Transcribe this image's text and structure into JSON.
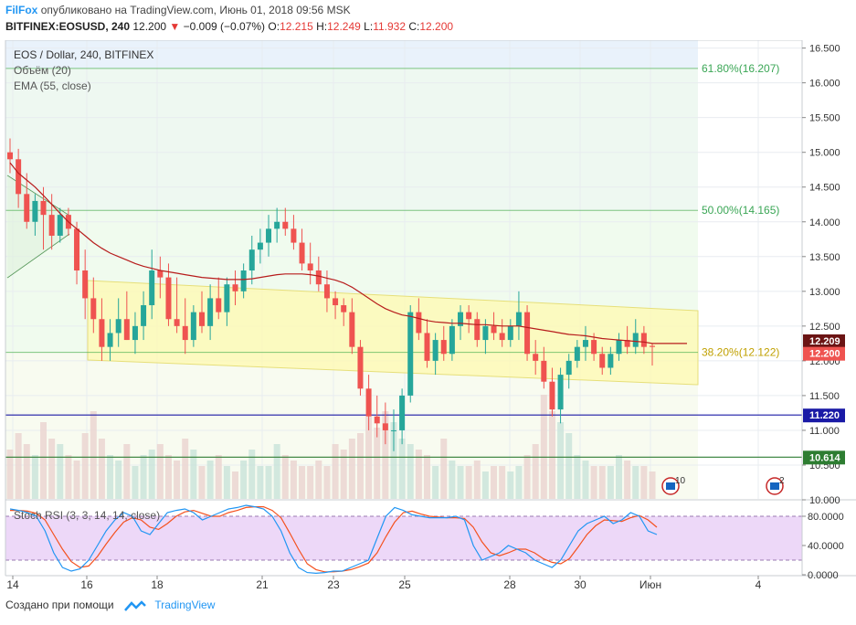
{
  "header": {
    "brand": "FilFox",
    "published": "опубликовано на TradingView.com, Июнь 01, 2018 09:56 MSK",
    "symbol": "BITFINEX:EOSUSD, 240",
    "last": "12.200",
    "change": "−0.009 (−0.07%)",
    "o_label": "O:",
    "o_val": "12.215",
    "h_label": "H:",
    "h_val": "12.249",
    "l_label": "L:",
    "l_val": "11.932",
    "c_label": "C:",
    "c_val": "12.200"
  },
  "legend": {
    "title": "EOS / Dollar, 240, BITFINEX",
    "volume": "Объём (20)",
    "ema": "EMA (55, close)",
    "stoch": "Stoch RSI (3, 3, 14, 14, close)"
  },
  "footer": {
    "created": "Создано при помощи",
    "tv": "TradingView"
  },
  "colors": {
    "up": "#26a69a",
    "down": "#ef5350",
    "ema": "#b71c1c",
    "fib": "#4caf50",
    "blue_line": "#1a1aa6",
    "green_line": "#2e7d32",
    "channel": "#fff9b0",
    "stoch_k": "#2196f3",
    "stoch_d": "#f4511e",
    "stoch_band": "#e6c8f5"
  },
  "chart_data": {
    "type": "candlestick",
    "title": "EOS / Dollar, 240, BITFINEX",
    "y_axis_ticks": [
      "16.500",
      "16.000",
      "15.500",
      "15.000",
      "14.500",
      "14.000",
      "13.500",
      "13.000",
      "12.500",
      "12.000",
      "11.500",
      "11.000",
      "10.500",
      "10.000"
    ],
    "ylim": [
      10.0,
      16.6
    ],
    "x_axis_ticks": [
      "14",
      "16",
      "18",
      "21",
      "23",
      "25",
      "28",
      "30",
      "Июн",
      "4"
    ],
    "price_labels": [
      {
        "value": 12.209,
        "text": "12.209",
        "color": "#6b1414"
      },
      {
        "value": 12.2,
        "text": "12.200",
        "color": "#ef5350"
      },
      {
        "value": 11.22,
        "text": "11.220",
        "color": "#1a1aa6"
      },
      {
        "value": 10.614,
        "text": "10.614",
        "color": "#2e7d32"
      }
    ],
    "horizontal_lines": [
      {
        "value": 11.22,
        "color": "#1a1aa6"
      },
      {
        "value": 10.614,
        "color": "#2e7d32"
      }
    ],
    "fibonacci": [
      {
        "value": 16.207,
        "text": "61.80%(16.207)"
      },
      {
        "value": 14.165,
        "text": "50.00%(14.165)"
      },
      {
        "value": 12.122,
        "text": "38.20%(12.122)"
      }
    ],
    "candles": [
      [
        15.0,
        15.2,
        14.7,
        14.9
      ],
      [
        14.9,
        15.05,
        14.2,
        14.4
      ],
      [
        14.4,
        14.7,
        13.9,
        14.0
      ],
      [
        14.0,
        14.4,
        13.8,
        14.3
      ],
      [
        14.3,
        14.5,
        13.6,
        14.1
      ],
      [
        14.1,
        14.4,
        13.6,
        13.8
      ],
      [
        13.8,
        14.2,
        13.7,
        14.1
      ],
      [
        14.1,
        14.2,
        13.8,
        13.9
      ],
      [
        13.9,
        14.0,
        13.1,
        13.3
      ],
      [
        13.3,
        13.6,
        12.6,
        12.9
      ],
      [
        12.9,
        13.2,
        12.4,
        12.6
      ],
      [
        12.6,
        12.9,
        12.0,
        12.2
      ],
      [
        12.2,
        12.6,
        12.0,
        12.4
      ],
      [
        12.4,
        12.9,
        12.2,
        12.6
      ],
      [
        12.6,
        13.0,
        12.3,
        12.3
      ],
      [
        12.3,
        12.7,
        12.1,
        12.5
      ],
      [
        12.5,
        13.0,
        12.3,
        12.8
      ],
      [
        12.8,
        13.6,
        12.6,
        13.3
      ],
      [
        13.3,
        13.5,
        12.9,
        13.2
      ],
      [
        13.2,
        13.4,
        12.5,
        12.6
      ],
      [
        12.6,
        13.2,
        12.4,
        12.5
      ],
      [
        12.5,
        12.9,
        12.1,
        12.3
      ],
      [
        12.3,
        12.8,
        12.2,
        12.7
      ],
      [
        12.7,
        13.0,
        12.4,
        12.5
      ],
      [
        12.5,
        13.1,
        12.3,
        12.9
      ],
      [
        12.9,
        13.2,
        12.6,
        12.7
      ],
      [
        12.7,
        13.2,
        12.5,
        13.1
      ],
      [
        13.1,
        13.3,
        12.8,
        13.0
      ],
      [
        13.0,
        13.4,
        12.9,
        13.3
      ],
      [
        13.3,
        13.8,
        13.1,
        13.6
      ],
      [
        13.6,
        13.9,
        13.4,
        13.7
      ],
      [
        13.7,
        14.1,
        13.5,
        13.9
      ],
      [
        13.9,
        14.2,
        13.7,
        14.0
      ],
      [
        14.0,
        14.2,
        13.8,
        13.9
      ],
      [
        13.9,
        14.1,
        13.6,
        13.7
      ],
      [
        13.7,
        13.9,
        13.3,
        13.4
      ],
      [
        13.4,
        13.7,
        13.1,
        13.3
      ],
      [
        13.3,
        13.5,
        13.0,
        13.1
      ],
      [
        13.1,
        13.3,
        12.7,
        12.9
      ],
      [
        12.9,
        13.0,
        12.6,
        12.8
      ],
      [
        12.8,
        12.9,
        12.5,
        12.7
      ],
      [
        12.7,
        12.9,
        12.1,
        12.2
      ],
      [
        12.2,
        12.3,
        11.5,
        11.6
      ],
      [
        11.6,
        11.8,
        11.0,
        11.2
      ],
      [
        11.2,
        11.5,
        10.9,
        11.1
      ],
      [
        11.1,
        11.4,
        10.8,
        11.0
      ],
      [
        11.0,
        11.3,
        10.7,
        11.0
      ],
      [
        11.0,
        11.6,
        10.8,
        11.5
      ],
      [
        11.5,
        12.8,
        11.4,
        12.7
      ],
      [
        12.7,
        12.9,
        12.3,
        12.4
      ],
      [
        12.4,
        12.6,
        11.9,
        12.0
      ],
      [
        12.0,
        12.4,
        11.8,
        12.3
      ],
      [
        12.3,
        12.5,
        12.0,
        12.1
      ],
      [
        12.1,
        12.6,
        12.0,
        12.5
      ],
      [
        12.5,
        12.8,
        12.3,
        12.7
      ],
      [
        12.7,
        12.8,
        12.4,
        12.6
      ],
      [
        12.6,
        12.7,
        12.2,
        12.3
      ],
      [
        12.3,
        12.6,
        12.1,
        12.5
      ],
      [
        12.5,
        12.7,
        12.3,
        12.4
      ],
      [
        12.4,
        12.6,
        12.2,
        12.3
      ],
      [
        12.3,
        12.6,
        12.2,
        12.5
      ],
      [
        12.5,
        13.0,
        12.3,
        12.7
      ],
      [
        12.7,
        12.8,
        12.0,
        12.1
      ],
      [
        12.1,
        12.3,
        11.8,
        12.0
      ],
      [
        12.0,
        12.2,
        11.6,
        11.7
      ],
      [
        11.7,
        11.9,
        11.2,
        11.3
      ],
      [
        11.3,
        11.9,
        11.1,
        11.8
      ],
      [
        11.8,
        12.1,
        11.6,
        12.0
      ],
      [
        12.0,
        12.3,
        11.9,
        12.2
      ],
      [
        12.2,
        12.5,
        12.0,
        12.3
      ],
      [
        12.3,
        12.4,
        12.0,
        12.1
      ],
      [
        12.1,
        12.2,
        11.8,
        11.9
      ],
      [
        11.9,
        12.2,
        11.8,
        12.1
      ],
      [
        12.1,
        12.4,
        12.0,
        12.3
      ],
      [
        12.3,
        12.5,
        12.1,
        12.2
      ],
      [
        12.2,
        12.6,
        12.1,
        12.4
      ],
      [
        12.4,
        12.5,
        12.1,
        12.2
      ],
      [
        12.215,
        12.249,
        11.932,
        12.2
      ]
    ],
    "ema": [
      14.85,
      14.7,
      14.6,
      14.5,
      14.38,
      14.25,
      14.12,
      14.0,
      13.9,
      13.8,
      13.7,
      13.62,
      13.55,
      13.5,
      13.45,
      13.4,
      13.36,
      13.33,
      13.3,
      13.28,
      13.26,
      13.24,
      13.22,
      13.2,
      13.19,
      13.18,
      13.17,
      13.17,
      13.17,
      13.18,
      13.2,
      13.22,
      13.24,
      13.25,
      13.25,
      13.25,
      13.24,
      13.22,
      13.19,
      13.16,
      13.12,
      13.06,
      12.98,
      12.9,
      12.82,
      12.75,
      12.7,
      12.66,
      12.64,
      12.61,
      12.58,
      12.56,
      12.55,
      12.54,
      12.54,
      12.53,
      12.52,
      12.52,
      12.51,
      12.5,
      12.5,
      12.5,
      12.48,
      12.46,
      12.44,
      12.42,
      12.4,
      12.38,
      12.37,
      12.36,
      12.34,
      12.32,
      12.31,
      12.3,
      12.29,
      12.28,
      12.27,
      12.25
    ],
    "volume": [
      0.45,
      0.6,
      0.5,
      0.4,
      0.7,
      0.55,
      0.5,
      0.4,
      0.35,
      0.6,
      0.8,
      0.55,
      0.4,
      0.35,
      0.5,
      0.3,
      0.4,
      0.45,
      0.5,
      0.4,
      0.35,
      0.55,
      0.45,
      0.3,
      0.35,
      0.4,
      0.3,
      0.25,
      0.35,
      0.45,
      0.3,
      0.3,
      0.5,
      0.4,
      0.35,
      0.3,
      0.3,
      0.35,
      0.3,
      0.5,
      0.45,
      0.55,
      0.6,
      0.75,
      0.65,
      0.8,
      0.7,
      0.55,
      0.5,
      0.45,
      0.4,
      0.3,
      0.55,
      0.35,
      0.3,
      0.3,
      0.35,
      0.25,
      0.3,
      0.3,
      0.25,
      0.3,
      0.4,
      0.5,
      0.95,
      0.8,
      0.7,
      0.6,
      0.4,
      0.35,
      0.3,
      0.3,
      0.3,
      0.4,
      0.35,
      0.3,
      0.3,
      0.25
    ],
    "stoch_y_ticks": [
      "80.0000",
      "40.0000",
      "0.0000"
    ],
    "stoch_k": [
      90,
      88,
      85,
      80,
      60,
      30,
      10,
      5,
      8,
      20,
      40,
      60,
      75,
      85,
      80,
      60,
      55,
      70,
      85,
      88,
      90,
      85,
      75,
      80,
      85,
      90,
      92,
      95,
      93,
      90,
      80,
      60,
      30,
      10,
      3,
      2,
      3,
      5,
      5,
      10,
      15,
      20,
      50,
      80,
      92,
      88,
      82,
      80,
      78,
      78,
      78,
      80,
      75,
      40,
      20,
      25,
      30,
      40,
      35,
      30,
      20,
      15,
      10,
      20,
      40,
      60,
      70,
      75,
      80,
      70,
      75,
      85,
      80,
      60,
      55
    ],
    "stoch_d": [
      88,
      88,
      87,
      84,
      75,
      55,
      35,
      18,
      10,
      12,
      25,
      42,
      58,
      72,
      78,
      75,
      65,
      62,
      70,
      80,
      86,
      88,
      84,
      80,
      80,
      85,
      88,
      92,
      93,
      93,
      88,
      78,
      57,
      35,
      15,
      7,
      4,
      4,
      5,
      7,
      11,
      16,
      30,
      52,
      72,
      85,
      87,
      83,
      80,
      79,
      78,
      78,
      77,
      65,
      45,
      30,
      26,
      30,
      35,
      35,
      30,
      22,
      17,
      15,
      22,
      38,
      55,
      67,
      75,
      74,
      73,
      78,
      81,
      75,
      65
    ],
    "stoch_ylim": [
      0,
      100
    ]
  }
}
